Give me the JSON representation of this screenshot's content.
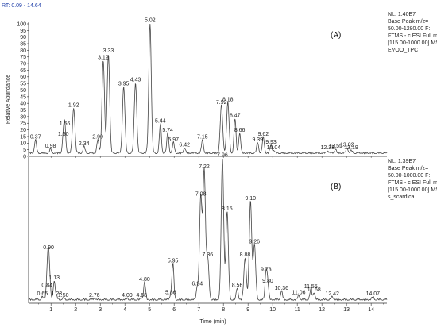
{
  "rt_label": "RT: 0.09 - 14.64",
  "chart_data": [
    {
      "type": "line",
      "panel": "(A)",
      "info": [
        "NL: 1.40E7",
        "Base Peak m/z=",
        "50.00-1280.00 F:",
        "FTMS - c ESI Full ms",
        "[115.00-1000.00] MS",
        "EVOO_TPC"
      ],
      "ylabel": "Relative Abundance",
      "ylim": [
        0,
        100
      ],
      "yticks": [
        0,
        5,
        10,
        15,
        20,
        25,
        30,
        35,
        40,
        45,
        50,
        55,
        60,
        65,
        70,
        75,
        80,
        85,
        90,
        95,
        100
      ],
      "xlim": [
        0.09,
        14.64
      ],
      "baseline": 2,
      "peaks": [
        {
          "x": 0.37,
          "y": 12,
          "label": "0.37"
        },
        {
          "x": 0.98,
          "y": 5,
          "label": "0.98"
        },
        {
          "x": 1.5,
          "y": 14,
          "label": "1.50"
        },
        {
          "x": 1.56,
          "y": 22,
          "label": "1.56"
        },
        {
          "x": 1.92,
          "y": 36,
          "label": "1.92"
        },
        {
          "x": 2.34,
          "y": 7,
          "label": "2.34"
        },
        {
          "x": 2.9,
          "y": 12,
          "label": "2.90"
        },
        {
          "x": 3.12,
          "y": 72,
          "label": "3.12"
        },
        {
          "x": 3.33,
          "y": 77,
          "label": "3.33"
        },
        {
          "x": 3.95,
          "y": 52,
          "label": "3.95"
        },
        {
          "x": 4.43,
          "y": 55,
          "label": "4.43"
        },
        {
          "x": 5.02,
          "y": 100,
          "label": "5.02"
        },
        {
          "x": 5.44,
          "y": 24,
          "label": "5.44"
        },
        {
          "x": 5.74,
          "y": 17,
          "label": "5.74"
        },
        {
          "x": 5.97,
          "y": 10,
          "label": "5.97"
        },
        {
          "x": 6.42,
          "y": 6,
          "label": "6.42"
        },
        {
          "x": 7.15,
          "y": 12,
          "label": "7.15"
        },
        {
          "x": 7.92,
          "y": 38,
          "label": "7.92"
        },
        {
          "x": 8.18,
          "y": 40,
          "label": "8.18"
        },
        {
          "x": 8.47,
          "y": 28,
          "label": "8.47"
        },
        {
          "x": 8.66,
          "y": 17,
          "label": "8.66"
        },
        {
          "x": 9.39,
          "y": 10,
          "label": "9.39"
        },
        {
          "x": 9.62,
          "y": 14,
          "label": "9.62"
        },
        {
          "x": 9.93,
          "y": 8,
          "label": "9.93"
        },
        {
          "x": 10.04,
          "y": 4,
          "label": "10.04"
        },
        {
          "x": 12.23,
          "y": 4,
          "label": "12.23"
        },
        {
          "x": 12.55,
          "y": 5,
          "label": "12.55"
        },
        {
          "x": 13.02,
          "y": 6,
          "label": "13.02"
        },
        {
          "x": 13.19,
          "y": 4,
          "label": "13.19"
        }
      ]
    },
    {
      "type": "line",
      "panel": "(B)",
      "info": [
        "NL: 1.39E7",
        "Base Peak m/z=",
        "50.00-1000.00 F:",
        "FTMS - c ESI Full ms",
        "[115.00-1000.00] MS",
        "s_scardica"
      ],
      "ylim": [
        0,
        100
      ],
      "xlim": [
        0.09,
        14.64
      ],
      "baseline": 2,
      "xlabel": "Time (min)",
      "xticks": [
        1,
        2,
        3,
        4,
        5,
        6,
        7,
        8,
        9,
        10,
        11,
        12,
        13,
        14
      ],
      "peaks": [
        {
          "x": 0.65,
          "y": 4,
          "label": "0.65"
        },
        {
          "x": 0.84,
          "y": 10,
          "label": "0.84"
        },
        {
          "x": 0.9,
          "y": 36,
          "label": "0.90"
        },
        {
          "x": 1.13,
          "y": 15,
          "label": "1.13"
        },
        {
          "x": 1.23,
          "y": 4,
          "label": "1.23"
        },
        {
          "x": 1.5,
          "y": 3,
          "label": "1.50"
        },
        {
          "x": 2.76,
          "y": 3,
          "label": "2.76"
        },
        {
          "x": 4.09,
          "y": 3,
          "label": "4.09"
        },
        {
          "x": 4.68,
          "y": 3,
          "label": "4.68"
        },
        {
          "x": 4.8,
          "y": 14,
          "label": "4.80"
        },
        {
          "x": 5.86,
          "y": 5,
          "label": "5.86"
        },
        {
          "x": 5.95,
          "y": 27,
          "label": "5.95"
        },
        {
          "x": 6.94,
          "y": 11,
          "label": "6.94"
        },
        {
          "x": 7.08,
          "y": 73,
          "label": "7.08"
        },
        {
          "x": 7.22,
          "y": 92,
          "label": "7.22"
        },
        {
          "x": 7.36,
          "y": 31,
          "label": "7.36"
        },
        {
          "x": 7.96,
          "y": 100,
          "label": "7.96"
        },
        {
          "x": 8.15,
          "y": 63,
          "label": "8.15"
        },
        {
          "x": 8.56,
          "y": 10,
          "label": "8.56"
        },
        {
          "x": 8.88,
          "y": 31,
          "label": "8.88"
        },
        {
          "x": 9.1,
          "y": 70,
          "label": "9.10"
        },
        {
          "x": 9.26,
          "y": 40,
          "label": "9.26"
        },
        {
          "x": 9.73,
          "y": 21,
          "label": "9.73"
        },
        {
          "x": 9.8,
          "y": 13,
          "label": "9.80"
        },
        {
          "x": 10.36,
          "y": 8,
          "label": "10.36"
        },
        {
          "x": 11.06,
          "y": 5,
          "label": "11.06"
        },
        {
          "x": 11.55,
          "y": 9,
          "label": "11.55"
        },
        {
          "x": 11.68,
          "y": 7,
          "label": "11.68"
        },
        {
          "x": 12.42,
          "y": 4,
          "label": "12.42"
        },
        {
          "x": 14.07,
          "y": 4,
          "label": "14.07"
        }
      ]
    }
  ]
}
